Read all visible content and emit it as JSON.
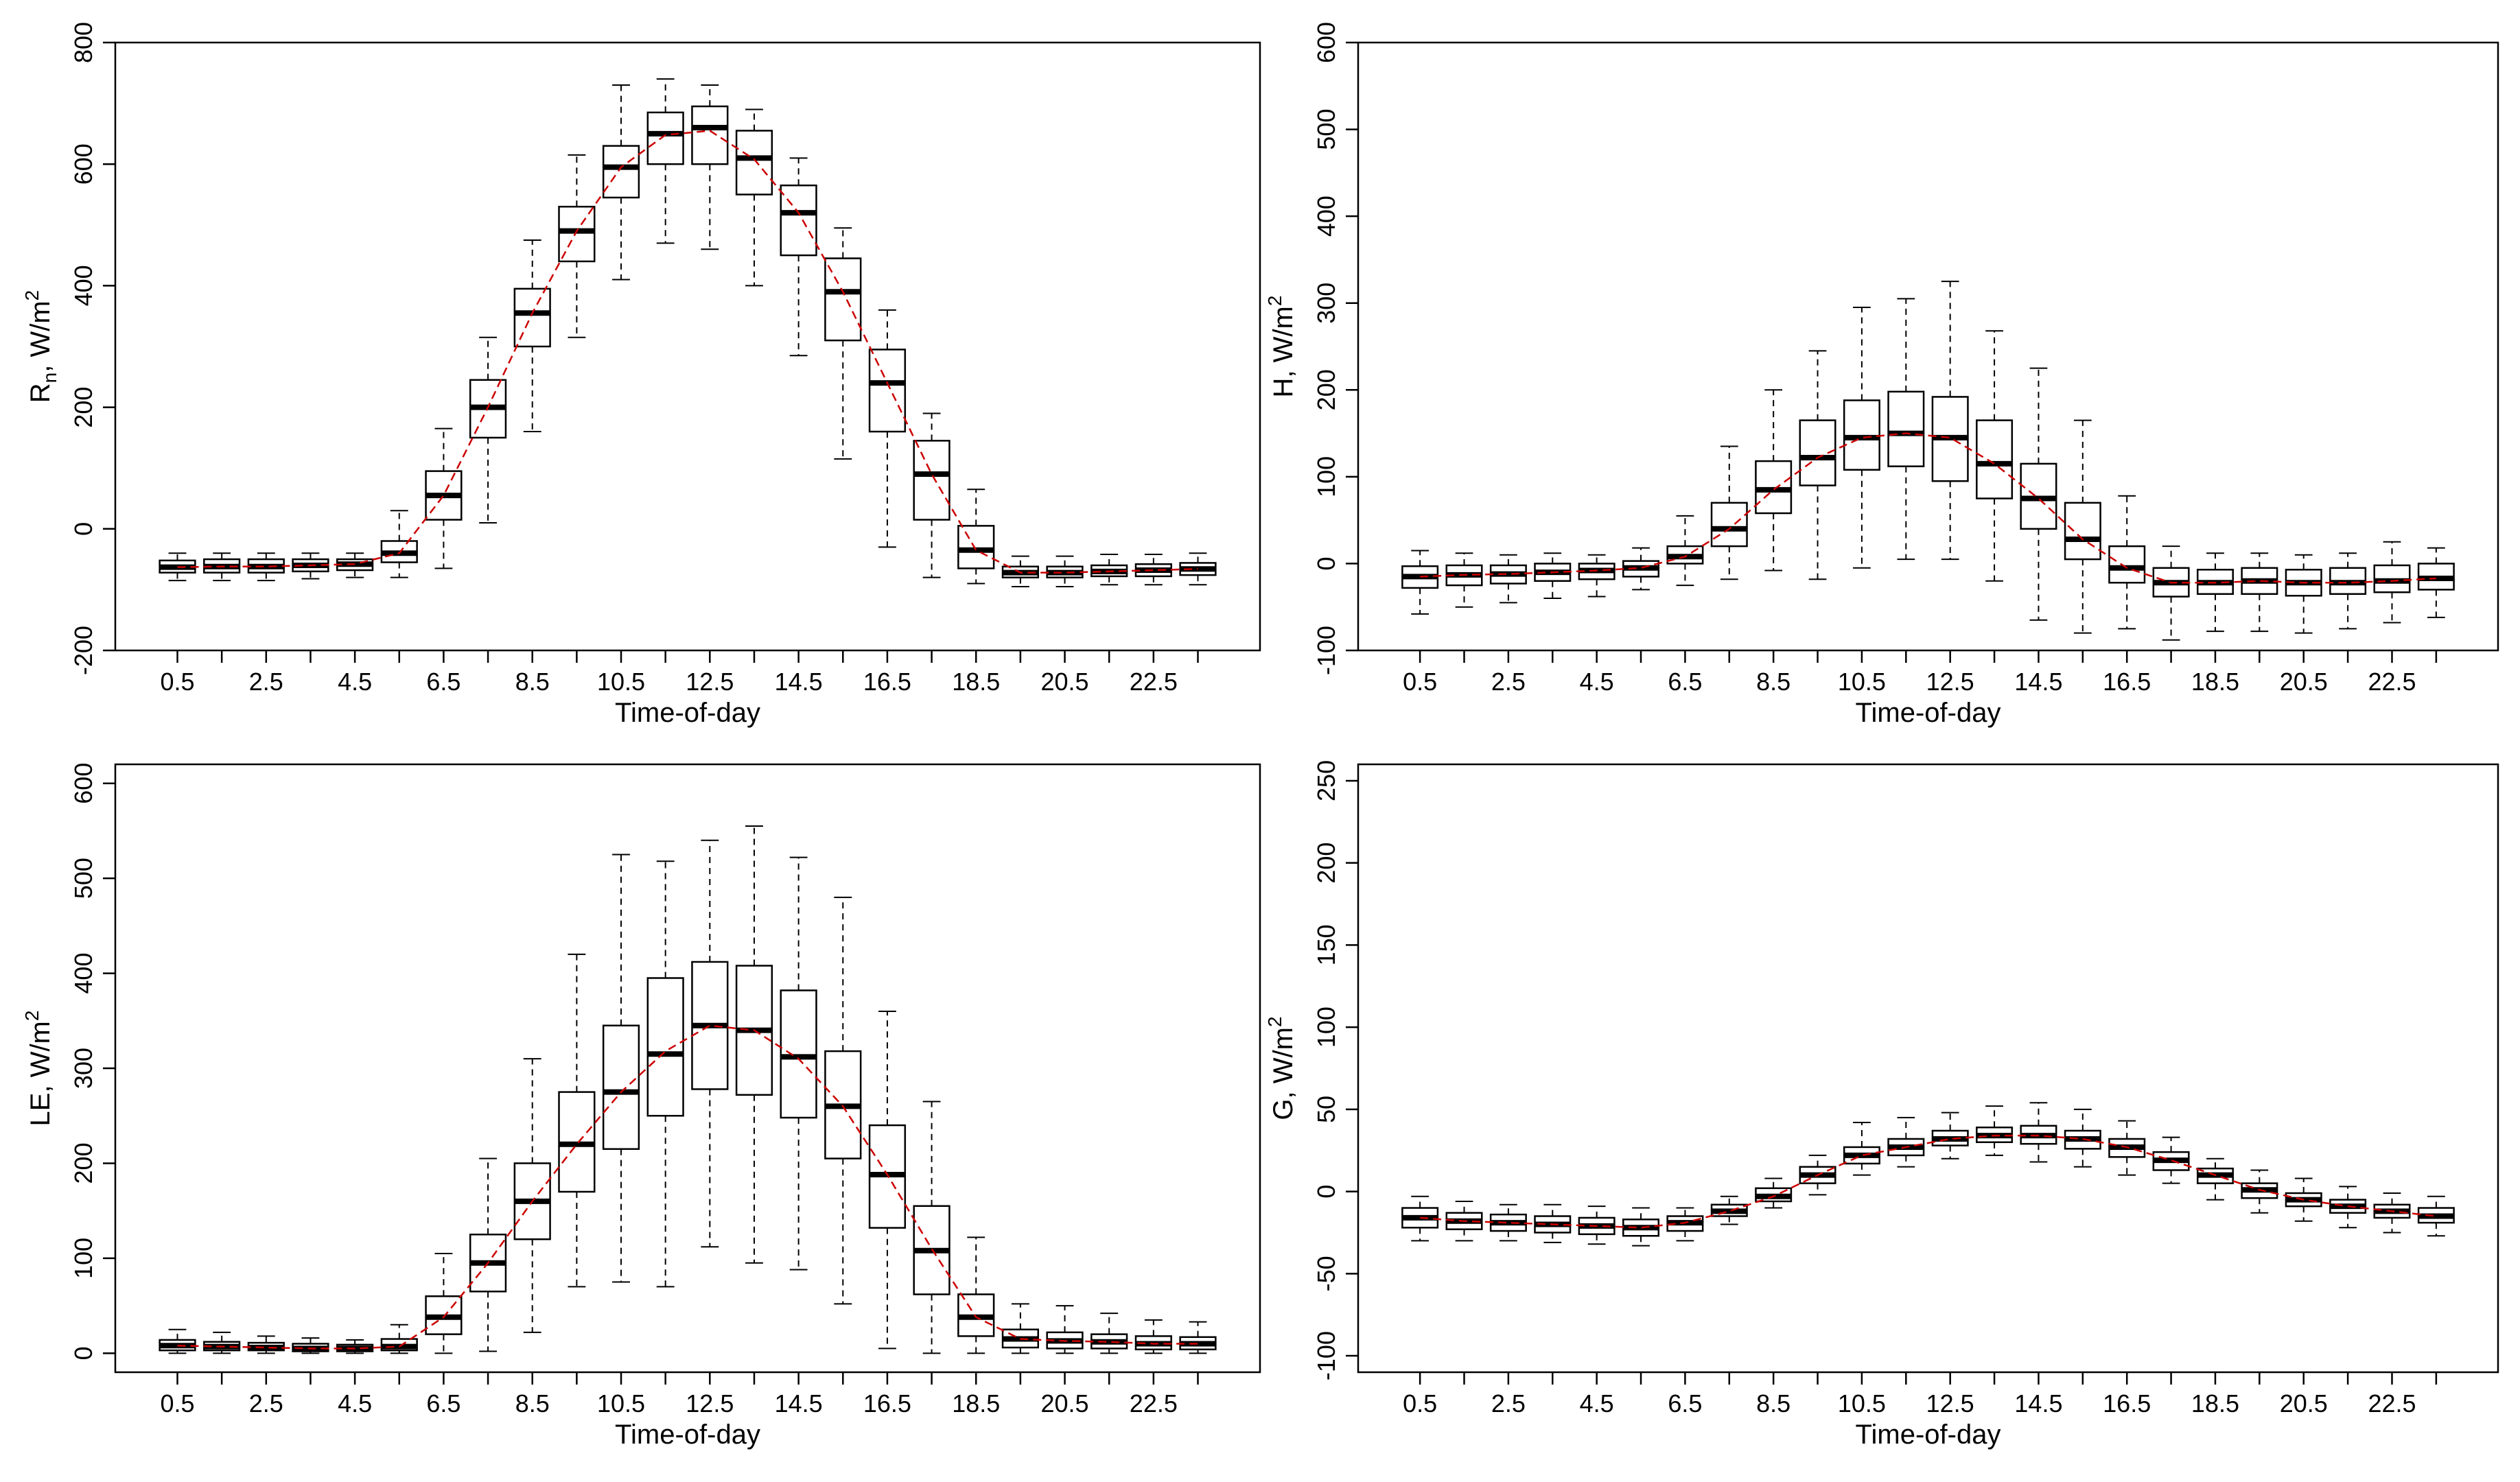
{
  "figure": {
    "panels": 4,
    "layout": "2x2 grid"
  },
  "chart_data": [
    {
      "id": "rn",
      "type": "box",
      "title": "",
      "xlabel": "Time-of-day",
      "ylabel": {
        "main": "R",
        "sub": "n",
        "unit": ", W/m",
        "sup": "2"
      },
      "ylim": [
        -200,
        800
      ],
      "yticks": [
        -200,
        0,
        200,
        400,
        600,
        800
      ],
      "ytick_labels": [
        "-200",
        "0",
        "200",
        "400",
        "600",
        "800"
      ],
      "xtick_labels": [
        "0.5",
        "2.5",
        "4.5",
        "6.5",
        "8.5",
        "10.5",
        "12.5",
        "14.5",
        "16.5",
        "18.5",
        "20.5",
        "22.5"
      ],
      "mean_line": {
        "style": "dashed",
        "color": "#cc0000"
      },
      "boxes": [
        {
          "x": 0.5,
          "min": -85,
          "q1": -72,
          "median": -63,
          "q3": -52,
          "max": -40
        },
        {
          "x": 1.5,
          "min": -85,
          "q1": -72,
          "median": -62,
          "q3": -50,
          "max": -40
        },
        {
          "x": 2.5,
          "min": -85,
          "q1": -72,
          "median": -62,
          "q3": -50,
          "max": -40
        },
        {
          "x": 3.5,
          "min": -82,
          "q1": -70,
          "median": -60,
          "q3": -50,
          "max": -40
        },
        {
          "x": 4.5,
          "min": -80,
          "q1": -68,
          "median": -58,
          "q3": -50,
          "max": -40
        },
        {
          "x": 5.5,
          "min": -80,
          "q1": -55,
          "median": -40,
          "q3": -20,
          "max": 30
        },
        {
          "x": 6.5,
          "min": -65,
          "q1": 15,
          "median": 55,
          "q3": 95,
          "max": 165
        },
        {
          "x": 7.5,
          "min": 10,
          "q1": 150,
          "median": 200,
          "q3": 245,
          "max": 315
        },
        {
          "x": 8.5,
          "min": 160,
          "q1": 300,
          "median": 355,
          "q3": 395,
          "max": 475
        },
        {
          "x": 9.5,
          "min": 315,
          "q1": 440,
          "median": 490,
          "q3": 530,
          "max": 615
        },
        {
          "x": 10.5,
          "min": 410,
          "q1": 545,
          "median": 595,
          "q3": 630,
          "max": 730
        },
        {
          "x": 11.5,
          "min": 470,
          "q1": 600,
          "median": 650,
          "q3": 685,
          "max": 740
        },
        {
          "x": 12.5,
          "min": 460,
          "q1": 600,
          "median": 660,
          "q3": 695,
          "max": 730
        },
        {
          "x": 13.5,
          "min": 400,
          "q1": 550,
          "median": 610,
          "q3": 655,
          "max": 690
        },
        {
          "x": 14.5,
          "min": 285,
          "q1": 450,
          "median": 520,
          "q3": 565,
          "max": 610
        },
        {
          "x": 15.5,
          "min": 115,
          "q1": 310,
          "median": 390,
          "q3": 445,
          "max": 495
        },
        {
          "x": 16.5,
          "min": -30,
          "q1": 160,
          "median": 240,
          "q3": 295,
          "max": 360
        },
        {
          "x": 17.5,
          "min": -80,
          "q1": 15,
          "median": 90,
          "q3": 145,
          "max": 190
        },
        {
          "x": 18.5,
          "min": -90,
          "q1": -65,
          "median": -35,
          "q3": 5,
          "max": 65
        },
        {
          "x": 19.5,
          "min": -95,
          "q1": -80,
          "median": -72,
          "q3": -62,
          "max": -45
        },
        {
          "x": 20.5,
          "min": -95,
          "q1": -80,
          "median": -72,
          "q3": -62,
          "max": -45
        },
        {
          "x": 21.5,
          "min": -92,
          "q1": -78,
          "median": -70,
          "q3": -60,
          "max": -42
        },
        {
          "x": 22.5,
          "min": -92,
          "q1": -78,
          "median": -68,
          "q3": -58,
          "max": -42
        },
        {
          "x": 23.5,
          "min": -92,
          "q1": -76,
          "median": -66,
          "q3": -56,
          "max": -40
        }
      ],
      "means": [
        -63,
        -62,
        -62,
        -60,
        -58,
        -40,
        55,
        200,
        355,
        490,
        595,
        648,
        655,
        608,
        520,
        390,
        240,
        90,
        -35,
        -72,
        -72,
        -70,
        -68,
        -66
      ]
    },
    {
      "id": "h",
      "type": "box",
      "title": "",
      "xlabel": "Time-of-day",
      "ylabel": {
        "main": "H",
        "sub": "",
        "unit": ", W/m",
        "sup": "2"
      },
      "ylim": [
        -100,
        600
      ],
      "yticks": [
        -100,
        0,
        100,
        200,
        300,
        400,
        500,
        600
      ],
      "ytick_labels": [
        "-100",
        "0",
        "100",
        "200",
        "300",
        "400",
        "500",
        "600"
      ],
      "xtick_labels": [
        "0.5",
        "2.5",
        "4.5",
        "6.5",
        "8.5",
        "10.5",
        "12.5",
        "14.5",
        "16.5",
        "18.5",
        "20.5",
        "22.5"
      ],
      "mean_line": {
        "style": "dashed",
        "color": "#cc0000"
      },
      "boxes": [
        {
          "x": 0.5,
          "min": -58,
          "q1": -28,
          "median": -15,
          "q3": -3,
          "max": 15
        },
        {
          "x": 1.5,
          "min": -50,
          "q1": -25,
          "median": -13,
          "q3": -2,
          "max": 12
        },
        {
          "x": 2.5,
          "min": -45,
          "q1": -23,
          "median": -12,
          "q3": -2,
          "max": 10
        },
        {
          "x": 3.5,
          "min": -40,
          "q1": -20,
          "median": -10,
          "q3": 0,
          "max": 12
        },
        {
          "x": 4.5,
          "min": -38,
          "q1": -18,
          "median": -8,
          "q3": 0,
          "max": 10
        },
        {
          "x": 5.5,
          "min": -30,
          "q1": -15,
          "median": -5,
          "q3": 3,
          "max": 18
        },
        {
          "x": 6.5,
          "min": -25,
          "q1": 0,
          "median": 8,
          "q3": 20,
          "max": 55
        },
        {
          "x": 7.5,
          "min": -18,
          "q1": 20,
          "median": 40,
          "q3": 70,
          "max": 135
        },
        {
          "x": 8.5,
          "min": -8,
          "q1": 58,
          "median": 85,
          "q3": 118,
          "max": 200
        },
        {
          "x": 9.5,
          "min": -18,
          "q1": 90,
          "median": 122,
          "q3": 165,
          "max": 245
        },
        {
          "x": 10.5,
          "min": -5,
          "q1": 108,
          "median": 145,
          "q3": 188,
          "max": 295
        },
        {
          "x": 11.5,
          "min": 5,
          "q1": 112,
          "median": 150,
          "q3": 198,
          "max": 305
        },
        {
          "x": 12.5,
          "min": 5,
          "q1": 95,
          "median": 145,
          "q3": 192,
          "max": 325
        },
        {
          "x": 13.5,
          "min": -20,
          "q1": 75,
          "median": 115,
          "q3": 165,
          "max": 268
        },
        {
          "x": 14.5,
          "min": -65,
          "q1": 40,
          "median": 75,
          "q3": 115,
          "max": 225
        },
        {
          "x": 15.5,
          "min": -80,
          "q1": 5,
          "median": 28,
          "q3": 70,
          "max": 165
        },
        {
          "x": 16.5,
          "min": -75,
          "q1": -22,
          "median": -5,
          "q3": 20,
          "max": 78
        },
        {
          "x": 17.5,
          "min": -88,
          "q1": -38,
          "median": -22,
          "q3": -5,
          "max": 20
        },
        {
          "x": 18.5,
          "min": -78,
          "q1": -35,
          "median": -22,
          "q3": -7,
          "max": 12
        },
        {
          "x": 19.5,
          "min": -78,
          "q1": -35,
          "median": -20,
          "q3": -5,
          "max": 12
        },
        {
          "x": 20.5,
          "min": -80,
          "q1": -37,
          "median": -22,
          "q3": -7,
          "max": 10
        },
        {
          "x": 21.5,
          "min": -75,
          "q1": -35,
          "median": -22,
          "q3": -5,
          "max": 12
        },
        {
          "x": 22.5,
          "min": -68,
          "q1": -33,
          "median": -20,
          "q3": -2,
          "max": 25
        },
        {
          "x": 23.5,
          "min": -62,
          "q1": -30,
          "median": -17,
          "q3": 0,
          "max": 18
        }
      ],
      "means": [
        -15,
        -13,
        -12,
        -10,
        -8,
        -5,
        8,
        40,
        85,
        122,
        145,
        150,
        145,
        115,
        75,
        28,
        -5,
        -22,
        -22,
        -20,
        -22,
        -22,
        -20,
        -17
      ]
    },
    {
      "id": "le",
      "type": "box",
      "title": "",
      "xlabel": "Time-of-day",
      "ylabel": {
        "main": "LE",
        "sub": "",
        "unit": ", W/m",
        "sup": "2"
      },
      "ylim": [
        -20,
        620
      ],
      "yticks": [
        0,
        100,
        200,
        300,
        400,
        500,
        600
      ],
      "ytick_labels": [
        "0",
        "100",
        "200",
        "300",
        "400",
        "500",
        "600"
      ],
      "xtick_labels": [
        "0.5",
        "2.5",
        "4.5",
        "6.5",
        "8.5",
        "10.5",
        "12.5",
        "14.5",
        "16.5",
        "18.5",
        "20.5",
        "22.5"
      ],
      "mean_line": {
        "style": "dashed",
        "color": "#cc0000"
      },
      "boxes": [
        {
          "x": 0.5,
          "min": 0,
          "q1": 3,
          "median": 8,
          "q3": 14,
          "max": 25
        },
        {
          "x": 1.5,
          "min": 0,
          "q1": 3,
          "median": 7,
          "q3": 12,
          "max": 22
        },
        {
          "x": 2.5,
          "min": 0,
          "q1": 3,
          "median": 6,
          "q3": 11,
          "max": 18
        },
        {
          "x": 3.5,
          "min": 0,
          "q1": 2,
          "median": 5,
          "q3": 10,
          "max": 16
        },
        {
          "x": 4.5,
          "min": 0,
          "q1": 2,
          "median": 5,
          "q3": 9,
          "max": 14
        },
        {
          "x": 5.5,
          "min": 0,
          "q1": 3,
          "median": 7,
          "q3": 15,
          "max": 30
        },
        {
          "x": 6.5,
          "min": 0,
          "q1": 20,
          "median": 38,
          "q3": 60,
          "max": 105
        },
        {
          "x": 7.5,
          "min": 2,
          "q1": 65,
          "median": 95,
          "q3": 125,
          "max": 205
        },
        {
          "x": 8.5,
          "min": 22,
          "q1": 120,
          "median": 160,
          "q3": 200,
          "max": 310
        },
        {
          "x": 9.5,
          "min": 70,
          "q1": 170,
          "median": 220,
          "q3": 275,
          "max": 420
        },
        {
          "x": 10.5,
          "min": 75,
          "q1": 215,
          "median": 275,
          "q3": 345,
          "max": 525
        },
        {
          "x": 11.5,
          "min": 70,
          "q1": 250,
          "median": 315,
          "q3": 395,
          "max": 518
        },
        {
          "x": 12.5,
          "min": 112,
          "q1": 278,
          "median": 345,
          "q3": 412,
          "max": 540
        },
        {
          "x": 13.5,
          "min": 95,
          "q1": 272,
          "median": 340,
          "q3": 408,
          "max": 555
        },
        {
          "x": 14.5,
          "min": 88,
          "q1": 248,
          "median": 312,
          "q3": 382,
          "max": 522
        },
        {
          "x": 15.5,
          "min": 52,
          "q1": 205,
          "median": 260,
          "q3": 318,
          "max": 480
        },
        {
          "x": 16.5,
          "min": 5,
          "q1": 132,
          "median": 188,
          "q3": 240,
          "max": 360
        },
        {
          "x": 17.5,
          "min": 0,
          "q1": 62,
          "median": 108,
          "q3": 155,
          "max": 265
        },
        {
          "x": 18.5,
          "min": 0,
          "q1": 18,
          "median": 38,
          "q3": 62,
          "max": 122
        },
        {
          "x": 19.5,
          "min": 0,
          "q1": 6,
          "median": 15,
          "q3": 25,
          "max": 52
        },
        {
          "x": 20.5,
          "min": 0,
          "q1": 5,
          "median": 13,
          "q3": 22,
          "max": 50
        },
        {
          "x": 21.5,
          "min": 0,
          "q1": 5,
          "median": 12,
          "q3": 20,
          "max": 42
        },
        {
          "x": 22.5,
          "min": 0,
          "q1": 4,
          "median": 10,
          "q3": 18,
          "max": 35
        },
        {
          "x": 23.5,
          "min": 0,
          "q1": 4,
          "median": 10,
          "q3": 17,
          "max": 33
        }
      ],
      "means": [
        8,
        7,
        6,
        5,
        5,
        7,
        38,
        95,
        160,
        220,
        275,
        318,
        345,
        340,
        310,
        260,
        188,
        110,
        38,
        15,
        13,
        12,
        10,
        10
      ]
    },
    {
      "id": "g",
      "type": "box",
      "title": "",
      "xlabel": "Time-of-day",
      "ylabel": {
        "main": "G",
        "sub": "",
        "unit": ", W/m",
        "sup": "2"
      },
      "ylim": [
        -110,
        260
      ],
      "yticks": [
        -100,
        -50,
        0,
        50,
        100,
        150,
        200,
        250
      ],
      "ytick_labels": [
        "-100",
        "-50",
        "0",
        "50",
        "100",
        "150",
        "200",
        "250"
      ],
      "xtick_labels": [
        "0.5",
        "2.5",
        "4.5",
        "6.5",
        "8.5",
        "10.5",
        "12.5",
        "14.5",
        "16.5",
        "18.5",
        "20.5",
        "22.5"
      ],
      "mean_line": {
        "style": "dashed",
        "color": "#cc0000"
      },
      "boxes": [
        {
          "x": 0.5,
          "min": -30,
          "q1": -22,
          "median": -16,
          "q3": -10,
          "max": -3
        },
        {
          "x": 1.5,
          "min": -30,
          "q1": -23,
          "median": -18,
          "q3": -13,
          "max": -6
        },
        {
          "x": 2.5,
          "min": -30,
          "q1": -24,
          "median": -19,
          "q3": -14,
          "max": -8
        },
        {
          "x": 3.5,
          "min": -31,
          "q1": -25,
          "median": -20,
          "q3": -15,
          "max": -8
        },
        {
          "x": 4.5,
          "min": -32,
          "q1": -26,
          "median": -21,
          "q3": -16,
          "max": -9
        },
        {
          "x": 5.5,
          "min": -33,
          "q1": -27,
          "median": -22,
          "q3": -17,
          "max": -10
        },
        {
          "x": 6.5,
          "min": -30,
          "q1": -24,
          "median": -19,
          "q3": -15,
          "max": -10
        },
        {
          "x": 7.5,
          "min": -20,
          "q1": -15,
          "median": -12,
          "q3": -8,
          "max": -3
        },
        {
          "x": 8.5,
          "min": -10,
          "q1": -6,
          "median": -3,
          "q3": 2,
          "max": 8
        },
        {
          "x": 9.5,
          "min": -2,
          "q1": 5,
          "median": 10,
          "q3": 15,
          "max": 22
        },
        {
          "x": 10.5,
          "min": 10,
          "q1": 17,
          "median": 22,
          "q3": 27,
          "max": 42
        },
        {
          "x": 11.5,
          "min": 15,
          "q1": 22,
          "median": 27,
          "q3": 32,
          "max": 45
        },
        {
          "x": 12.5,
          "min": 20,
          "q1": 28,
          "median": 32,
          "q3": 37,
          "max": 48
        },
        {
          "x": 13.5,
          "min": 22,
          "q1": 30,
          "median": 34,
          "q3": 39,
          "max": 52
        },
        {
          "x": 14.5,
          "min": 18,
          "q1": 29,
          "median": 34,
          "q3": 40,
          "max": 54
        },
        {
          "x": 15.5,
          "min": 15,
          "q1": 26,
          "median": 32,
          "q3": 37,
          "max": 50
        },
        {
          "x": 16.5,
          "min": 10,
          "q1": 21,
          "median": 27,
          "q3": 32,
          "max": 43
        },
        {
          "x": 17.5,
          "min": 5,
          "q1": 13,
          "median": 19,
          "q3": 24,
          "max": 33
        },
        {
          "x": 18.5,
          "min": -5,
          "q1": 5,
          "median": 10,
          "q3": 14,
          "max": 20
        },
        {
          "x": 19.5,
          "min": -13,
          "q1": -4,
          "median": 1,
          "q3": 5,
          "max": 13
        },
        {
          "x": 20.5,
          "min": -18,
          "q1": -9,
          "median": -5,
          "q3": -1,
          "max": 8
        },
        {
          "x": 21.5,
          "min": -22,
          "q1": -13,
          "median": -9,
          "q3": -5,
          "max": 3
        },
        {
          "x": 22.5,
          "min": -25,
          "q1": -16,
          "median": -12,
          "q3": -8,
          "max": -1
        },
        {
          "x": 23.5,
          "min": -27,
          "q1": -19,
          "median": -15,
          "q3": -10,
          "max": -3
        }
      ],
      "means": [
        -16,
        -18,
        -19,
        -20,
        -21,
        -22,
        -19,
        -12,
        -3,
        10,
        22,
        27,
        32,
        34,
        34,
        32,
        27,
        19,
        10,
        1,
        -5,
        -9,
        -12,
        -15
      ]
    }
  ]
}
